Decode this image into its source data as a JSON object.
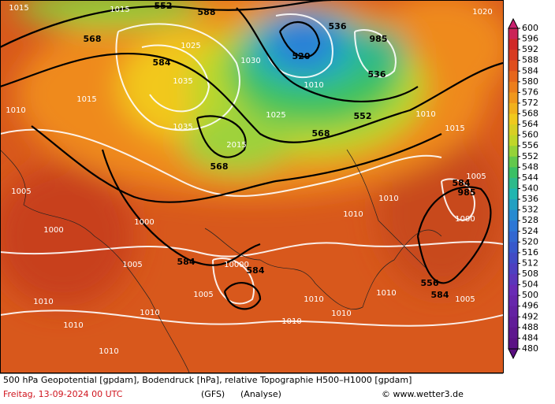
{
  "colorbar": {
    "values": [
      600,
      596,
      592,
      588,
      584,
      580,
      576,
      572,
      568,
      564,
      560,
      556,
      552,
      548,
      544,
      540,
      536,
      532,
      528,
      524,
      520,
      516,
      512,
      508,
      504,
      500,
      496,
      492,
      488,
      484,
      480
    ]
  },
  "map_labels": [
    "1015",
    "1015",
    "552",
    "588",
    "536",
    "985",
    "520",
    "536",
    "568",
    "584",
    "1025",
    "1035",
    "1030",
    "1010",
    "552",
    "568",
    "568",
    "2015",
    "1025",
    "1020",
    "1010",
    "1015",
    "584",
    "985",
    "1000",
    "1005",
    "1005",
    "1000",
    "1000",
    "584",
    "584",
    "10000",
    "1005",
    "1005",
    "1010",
    "1010",
    "1010",
    "1010",
    "1010",
    "1010",
    "1010",
    "1010",
    "556",
    "584",
    "1005",
    "1010",
    "1010",
    "1010",
    "1015",
    "1035"
  ],
  "footer": {
    "description": "500 hPa Geopotential [gpdam], Bodendruck [hPa], relative Topographie H500–H1000 [gpdam]",
    "date": "Freitag, 13-09-2024  00 UTC",
    "model": "(GFS)",
    "run": "(Analyse)",
    "credit": "© www.wetter3.de"
  }
}
